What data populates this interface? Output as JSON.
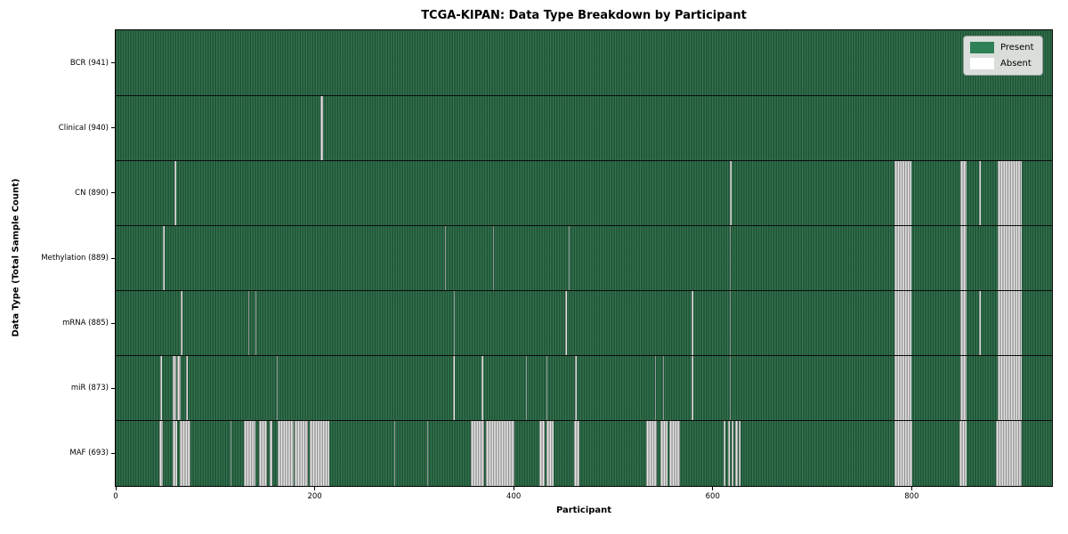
{
  "title": "TCGA-KIPAN: Data Type Breakdown by Participant",
  "axes": {
    "xlabel": "Participant",
    "ylabel": "Data Type (Total Sample Count)"
  },
  "legend": {
    "items": [
      {
        "label": "Present",
        "color": "#2e8057"
      },
      {
        "label": "Absent",
        "color": "#ffffff"
      }
    ]
  },
  "chart_data": {
    "type": "heatmap",
    "title": "TCGA-KIPAN: Data Type Breakdown by Participant",
    "xlabel": "Participant",
    "ylabel": "Data Type (Total Sample Count)",
    "x_max": 941,
    "x_ticks": [
      0,
      200,
      400,
      600,
      800
    ],
    "legend_entries": [
      "Present",
      "Absent"
    ],
    "colors": {
      "present": "#2e8057",
      "absent": "#ffffff"
    },
    "rows": [
      {
        "label": "BCR (941)",
        "total_samples": 941,
        "absent_ranges": []
      },
      {
        "label": "Clinical (940)",
        "total_samples": 940,
        "absent_ranges": [
          [
            206,
            208
          ]
        ]
      },
      {
        "label": "CN (890)",
        "total_samples": 890,
        "absent_ranges": [
          [
            59,
            61
          ],
          [
            617,
            619
          ],
          [
            783,
            800
          ],
          [
            849,
            855
          ],
          [
            868,
            869
          ],
          [
            886,
            911
          ]
        ]
      },
      {
        "label": "Methylation (889)",
        "total_samples": 889,
        "absent_ranges": [
          [
            47,
            49
          ],
          [
            331,
            332
          ],
          [
            379,
            380
          ],
          [
            455,
            456
          ],
          [
            617,
            618
          ],
          [
            783,
            800
          ],
          [
            849,
            855
          ],
          [
            886,
            911
          ]
        ]
      },
      {
        "label": "mRNA (885)",
        "total_samples": 885,
        "absent_ranges": [
          [
            65,
            67
          ],
          [
            133,
            134
          ],
          [
            140,
            141
          ],
          [
            340,
            341
          ],
          [
            452,
            453
          ],
          [
            579,
            580
          ],
          [
            617,
            618
          ],
          [
            783,
            800
          ],
          [
            849,
            855
          ],
          [
            868,
            869
          ],
          [
            886,
            911
          ]
        ]
      },
      {
        "label": "miR (873)",
        "total_samples": 873,
        "absent_ranges": [
          [
            45,
            46
          ],
          [
            57,
            61
          ],
          [
            62,
            65
          ],
          [
            71,
            72
          ],
          [
            162,
            163
          ],
          [
            339,
            341
          ],
          [
            368,
            369
          ],
          [
            412,
            413
          ],
          [
            433,
            434
          ],
          [
            462,
            463
          ],
          [
            542,
            543
          ],
          [
            550,
            551
          ],
          [
            579,
            580
          ],
          [
            617,
            618
          ],
          [
            783,
            800
          ],
          [
            849,
            855
          ],
          [
            886,
            911
          ]
        ]
      },
      {
        "label": "MAF (693)",
        "total_samples": 693,
        "absent_ranges": [
          [
            44,
            47
          ],
          [
            57,
            62
          ],
          [
            64,
            75
          ],
          [
            115,
            116
          ],
          [
            129,
            140
          ],
          [
            144,
            152
          ],
          [
            155,
            157
          ],
          [
            163,
            179
          ],
          [
            180,
            193
          ],
          [
            195,
            215
          ],
          [
            280,
            281
          ],
          [
            313,
            314
          ],
          [
            357,
            370
          ],
          [
            372,
            401
          ],
          [
            426,
            431
          ],
          [
            433,
            440
          ],
          [
            461,
            466
          ],
          [
            533,
            544
          ],
          [
            547,
            555
          ],
          [
            556,
            567
          ],
          [
            611,
            613
          ],
          [
            615,
            617
          ],
          [
            619,
            621
          ],
          [
            623,
            625
          ],
          [
            626,
            628
          ],
          [
            783,
            801
          ],
          [
            848,
            855
          ],
          [
            885,
            911
          ]
        ]
      }
    ]
  }
}
